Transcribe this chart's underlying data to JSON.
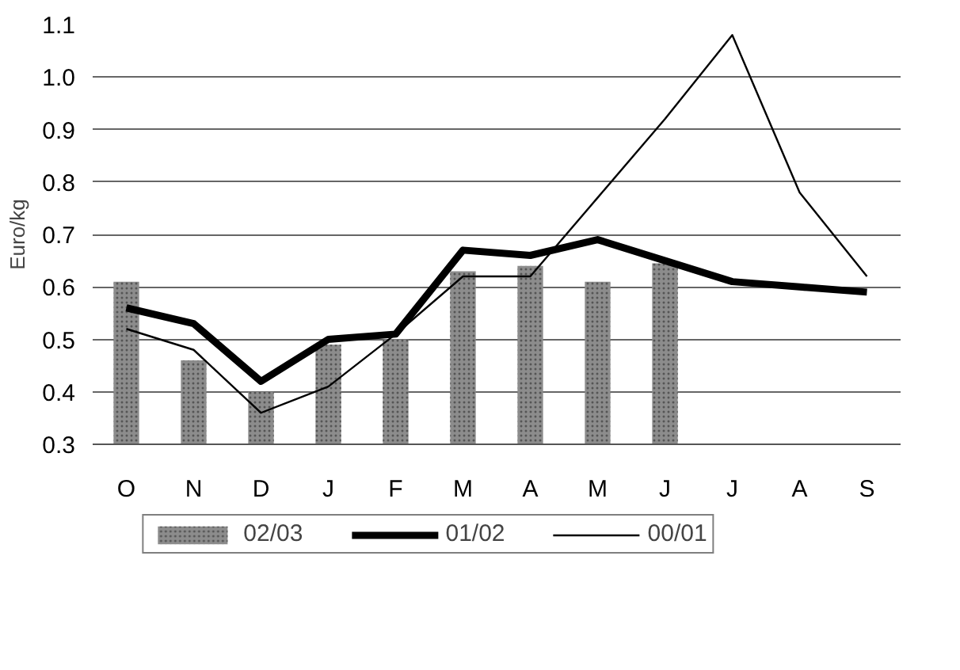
{
  "chart_data": {
    "type": "bar",
    "ylabel": "Euro/kg",
    "categories": [
      "O",
      "N",
      "D",
      "J",
      "F",
      "M",
      "A",
      "M",
      "J",
      "J",
      "A",
      "S"
    ],
    "series": [
      {
        "name": "02/03",
        "color": "#8c8c8c",
        "values": [
          0.61,
          0.46,
          0.4,
          0.49,
          0.5,
          0.63,
          0.64,
          0.61,
          0.645,
          null,
          null,
          null
        ]
      },
      {
        "name": "01/02",
        "type": "line",
        "color": "#000000",
        "values": [
          0.56,
          0.53,
          0.42,
          0.5,
          0.51,
          0.67,
          0.66,
          0.69,
          0.65,
          0.61,
          0.6,
          0.59
        ]
      },
      {
        "name": "00/01",
        "type": "line",
        "color": "#000000",
        "values": [
          0.52,
          0.48,
          0.36,
          0.41,
          0.51,
          0.62,
          0.62,
          0.77,
          0.92,
          1.08,
          0.78,
          0.62
        ]
      }
    ],
    "ylim": [
      0.3,
      1.1
    ],
    "yticks": [
      0.3,
      0.4,
      0.5,
      0.6,
      0.7,
      0.8,
      0.9,
      {
        "value": 1.0,
        "label": "1.0"
      },
      1.1
    ],
    "grid": "y",
    "legend": "bottom"
  }
}
